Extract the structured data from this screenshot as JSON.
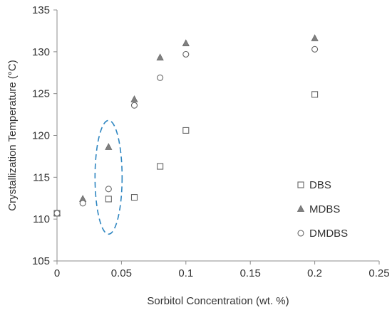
{
  "chart_data": {
    "type": "scatter",
    "title": "",
    "xlabel": "Sorbitol Concentration (wt. %)",
    "ylabel": "Crystallization Temperature (°C)",
    "xlim": [
      0,
      0.25
    ],
    "ylim": [
      105,
      135
    ],
    "x_ticks": [
      0,
      0.05,
      0.1,
      0.15,
      0.2,
      0.25
    ],
    "x_tick_labels": [
      "0",
      "0.05",
      "0.1",
      "0.15",
      "0.2",
      "0.25"
    ],
    "y_ticks": [
      105,
      110,
      115,
      120,
      125,
      130,
      135
    ],
    "y_tick_labels": [
      "105",
      "110",
      "115",
      "120",
      "125",
      "130",
      "135"
    ],
    "grid": false,
    "legend_position": "right",
    "series": [
      {
        "name": "DBS",
        "marker": "square-open",
        "color": "#666666",
        "x": [
          0,
          0.04,
          0.06,
          0.08,
          0.1,
          0.2
        ],
        "y": [
          110.7,
          112.4,
          112.6,
          116.3,
          120.6,
          124.9
        ]
      },
      {
        "name": "MDBS",
        "marker": "triangle-filled",
        "color": "#808080",
        "x": [
          0,
          0.02,
          0.04,
          0.06,
          0.08,
          0.1,
          0.2
        ],
        "y": [
          110.7,
          112.4,
          118.6,
          124.3,
          129.3,
          131.0,
          131.6
        ]
      },
      {
        "name": "DMDBS",
        "marker": "circle-open",
        "color": "#666666",
        "x": [
          0,
          0.02,
          0.04,
          0.06,
          0.08,
          0.1,
          0.2
        ],
        "y": [
          110.7,
          111.9,
          113.6,
          123.6,
          126.9,
          129.7,
          130.3
        ]
      }
    ],
    "annotation": {
      "shape": "dashed-ellipse",
      "color": "#2e86c1",
      "center_x": 0.04,
      "center_y": 115
    }
  }
}
